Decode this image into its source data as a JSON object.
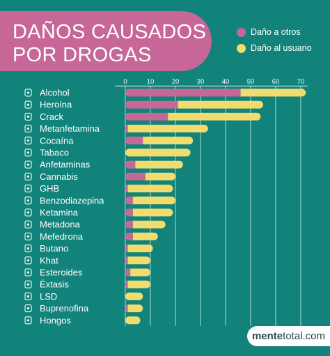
{
  "title": {
    "line1": "DAÑOS CAUSADOS",
    "line2": "POR DROGAS"
  },
  "legend": [
    {
      "label": "Daño a otros",
      "color": "#c76797"
    },
    {
      "label": "Daño al usuario",
      "color": "#f2dc6e"
    }
  ],
  "colors": {
    "background": "#12837a",
    "others": "#c76797",
    "user": "#f2dc6e",
    "grid": "#ffffff"
  },
  "brand": {
    "bold": "mente",
    "rest": "total.com"
  },
  "chart_data": {
    "type": "bar",
    "orientation": "horizontal",
    "stacked": true,
    "xlim": [
      0,
      72
    ],
    "xticks": [
      0,
      10,
      20,
      30,
      40,
      50,
      60,
      70
    ],
    "grid": true,
    "legend_position": "top-right",
    "categories": [
      "Alcohol",
      "Heroína",
      "Crack",
      "Metanfetamina",
      "Cocaína",
      "Tabaco",
      "Anfetaminas",
      "Cannabis",
      "GHB",
      "Benzodiazepina",
      "Ketamina",
      "Metadona",
      "Mefedrona",
      "Butano",
      "Khat",
      "Esteroides",
      "Éxtasis",
      "LSD",
      "Buprenofina",
      "Hongos"
    ],
    "icons": [
      "bottle-icon",
      "syringe-icon",
      "pipe-icon",
      "crystal-icon",
      "powder-icon",
      "cigarette-icon",
      "pills-icon",
      "leaf-icon",
      "vial-icon",
      "pill-box-icon",
      "powder-bag-icon",
      "bottle-dropper-icon",
      "triangle-bag-icon",
      "lighter-icon",
      "leaf-icon",
      "needle-icon",
      "tablet-icon",
      "blotter-icon",
      "pills-icon",
      "mushroom-icon"
    ],
    "series": [
      {
        "name": "Daño a otros",
        "values": [
          46,
          21,
          17,
          1,
          7,
          0,
          4,
          8,
          1,
          3,
          3,
          3,
          3,
          1,
          1,
          2,
          1,
          0,
          1,
          0
        ]
      },
      {
        "name": "Daño al usuario",
        "values": [
          26,
          34,
          37,
          32,
          20,
          26,
          19,
          12,
          18,
          17,
          16,
          13,
          10,
          10,
          9,
          8,
          9,
          7,
          6,
          6
        ]
      }
    ]
  }
}
